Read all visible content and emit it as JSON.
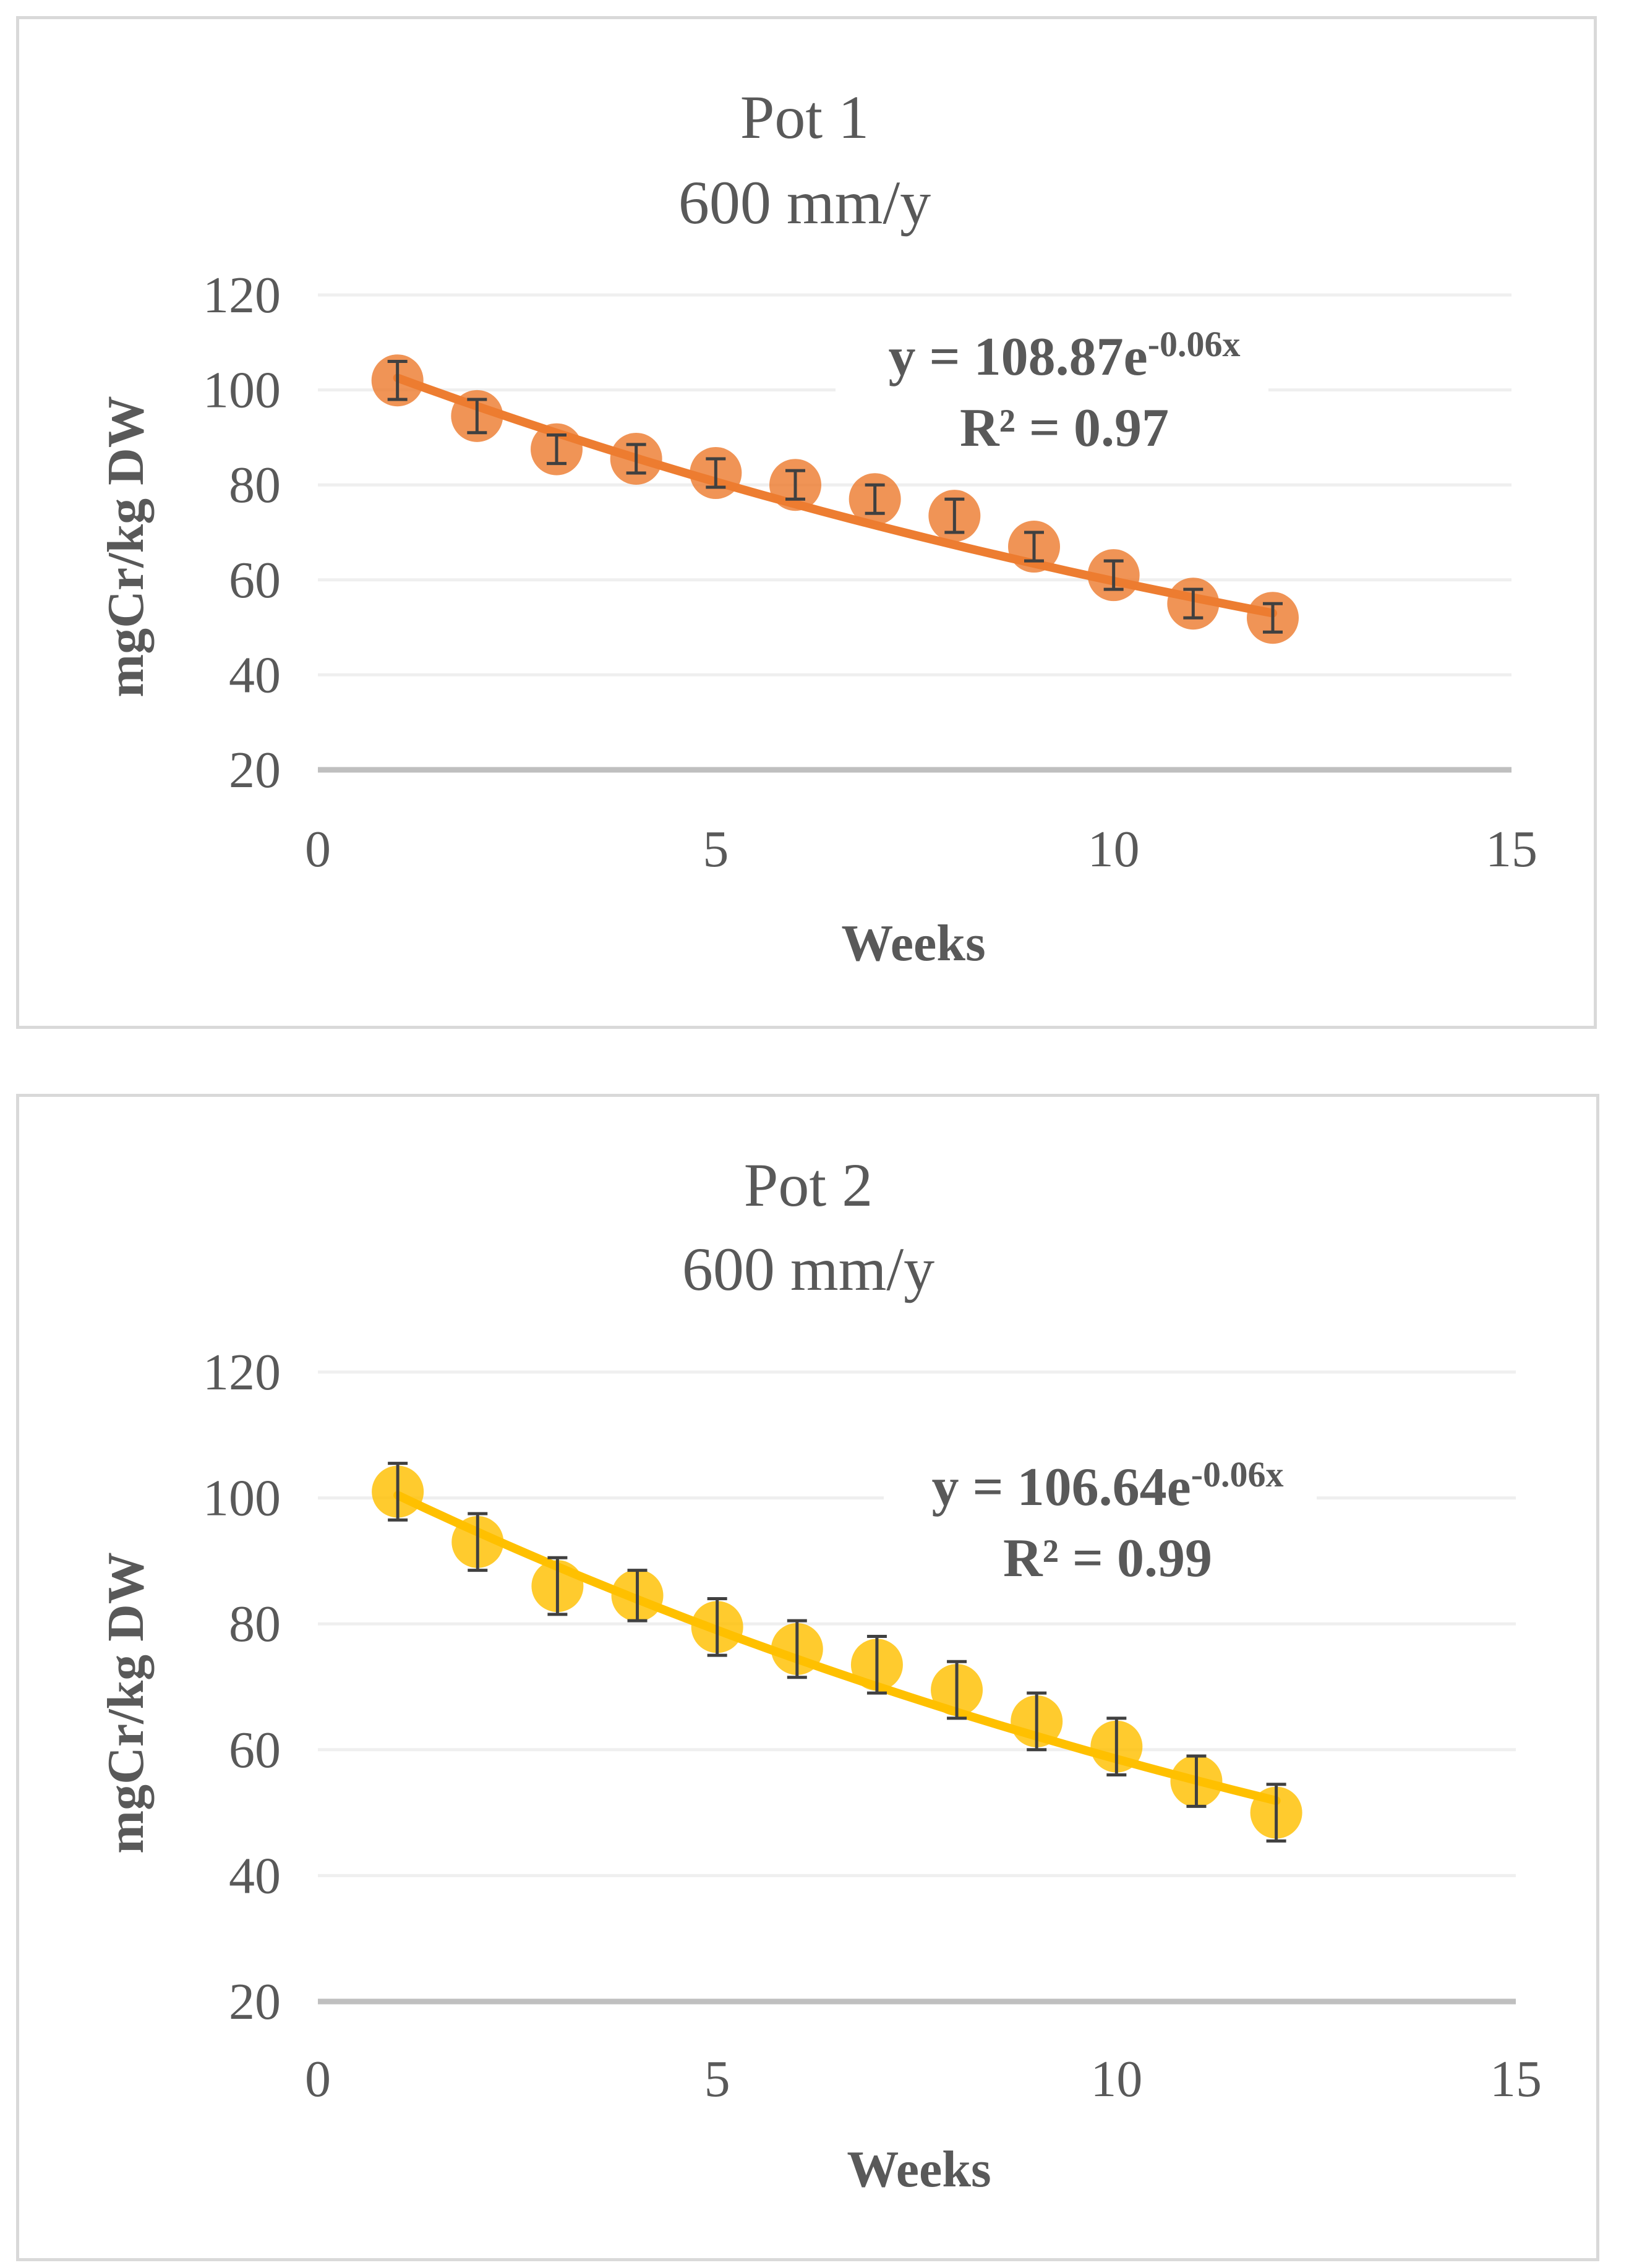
{
  "chart_data": [
    {
      "type": "scatter",
      "title": "Pot 1",
      "subtitle": "600 mm/y",
      "xlabel": "Weeks",
      "ylabel": "mgCr/kg DW",
      "xlim": [
        0,
        15
      ],
      "ylim": [
        20,
        120
      ],
      "x_ticks": [
        "0",
        "5",
        "10",
        "15"
      ],
      "y_ticks": [
        "20",
        "40",
        "60",
        "80",
        "100",
        "120"
      ],
      "grid": true,
      "legend": "none",
      "series": [
        {
          "name": "Pot 1",
          "color": "#ed7d31",
          "x": [
            1,
            2,
            3,
            4,
            5,
            6,
            7,
            8,
            9,
            10,
            11,
            12
          ],
          "y": [
            102,
            94.5,
            87.5,
            85.5,
            82.5,
            80,
            77,
            73.5,
            67,
            61,
            55,
            52
          ],
          "error": [
            4,
            3.5,
            3,
            3,
            3,
            3,
            3,
            3.5,
            3,
            3,
            3,
            3
          ]
        }
      ],
      "trendline": {
        "type": "exponential",
        "a": 108.87,
        "b": -0.06,
        "x_range": [
          1,
          12
        ],
        "equation_text": "y = 108.87e",
        "exponent_text": "-0.06x",
        "r2_text": "R² = 0.97"
      }
    },
    {
      "type": "scatter",
      "title": "Pot 2",
      "subtitle": "600 mm/y",
      "xlabel": "Weeks",
      "ylabel": "mgCr/kg DW",
      "xlim": [
        0,
        15
      ],
      "ylim": [
        20,
        120
      ],
      "x_ticks": [
        "0",
        "5",
        "10",
        "15"
      ],
      "y_ticks": [
        "20",
        "40",
        "60",
        "80",
        "100",
        "120"
      ],
      "grid": true,
      "legend": "none",
      "series": [
        {
          "name": "Pot 2",
          "color": "#ffc000",
          "x": [
            1,
            2,
            3,
            4,
            5,
            6,
            7,
            8,
            9,
            10,
            11,
            12
          ],
          "y": [
            101,
            93,
            86,
            84.5,
            79.5,
            76,
            73.5,
            69.5,
            64.5,
            60.5,
            55,
            50
          ],
          "error": [
            4.5,
            4.5,
            4.5,
            4,
            4.5,
            4.5,
            4.5,
            4.5,
            4.5,
            4.5,
            4,
            4.5
          ]
        }
      ],
      "trendline": {
        "type": "exponential",
        "a": 106.64,
        "b": -0.06,
        "x_range": [
          1,
          12
        ],
        "equation_text": "y = 106.64e",
        "exponent_text": "-0.06x",
        "r2_text": "R² = 0.99"
      }
    }
  ]
}
